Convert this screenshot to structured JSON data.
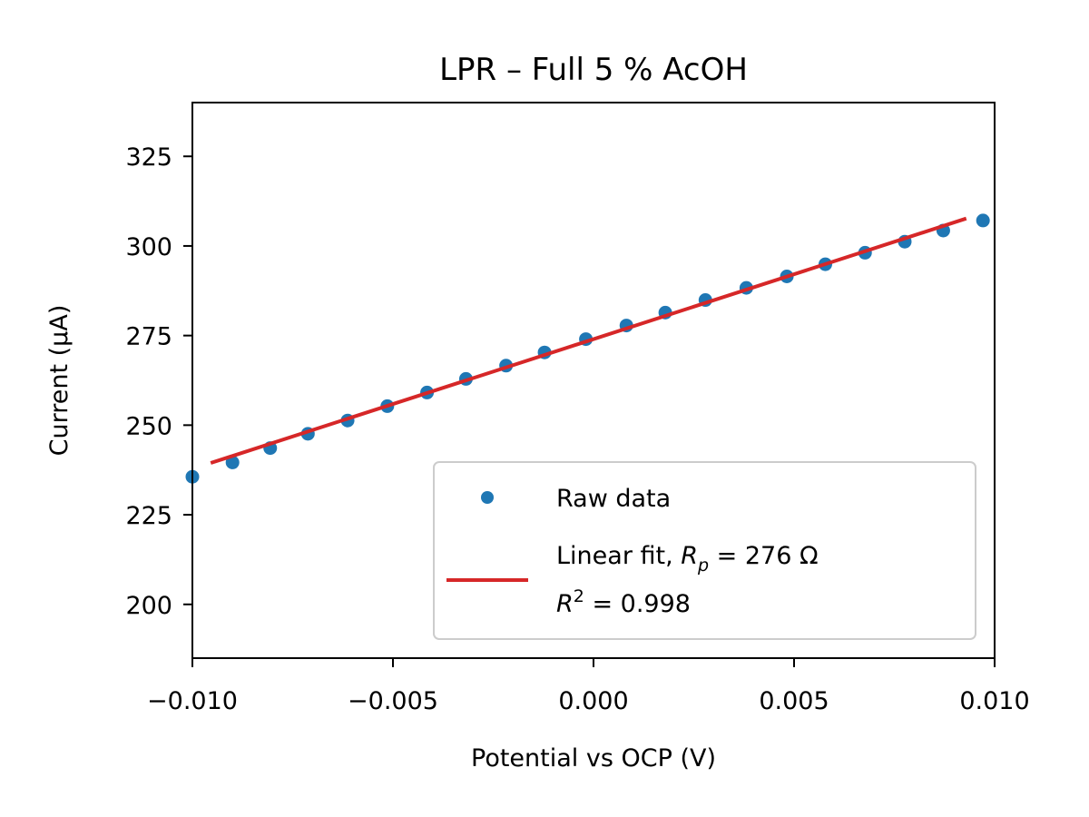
{
  "chart_data": {
    "type": "scatter",
    "title": "LPR – Full 5 % AcOH",
    "xlabel": "Potential vs OCP (V)",
    "ylabel": "Current (μA)",
    "xlim": [
      -0.01,
      0.01
    ],
    "ylim": [
      185,
      340
    ],
    "xticks": [
      -0.01,
      -0.005,
      0.0,
      0.005,
      0.01
    ],
    "xtick_labels": [
      "−0.010",
      "−0.005",
      "0.000",
      "0.005",
      "0.010"
    ],
    "yticks": [
      200,
      225,
      250,
      275,
      300,
      325
    ],
    "ytick_labels": [
      "200",
      "225",
      "250",
      "275",
      "300",
      "325"
    ],
    "grid": false,
    "legend_position": "lower-right",
    "series": [
      {
        "name": "Raw data",
        "kind": "scatter",
        "color": "#1f77b4",
        "x": [
          -0.01,
          -0.009,
          -0.00806,
          -0.00712,
          -0.00613,
          -0.00514,
          -0.00415,
          -0.00318,
          -0.00218,
          -0.00122,
          -0.00019,
          0.00082,
          0.00179,
          0.00279,
          0.00381,
          0.00482,
          0.00578,
          0.00677,
          0.00776,
          0.00872,
          0.00971
        ],
        "y": [
          235.6,
          239.6,
          243.6,
          247.6,
          251.3,
          255.3,
          259.1,
          262.9,
          266.6,
          270.3,
          274.0,
          277.8,
          281.4,
          284.9,
          288.3,
          291.5,
          294.9,
          298.1,
          301.2,
          304.3,
          307.1
        ]
      },
      {
        "name": "Linear fit, R_p = 276 Ω\nR^2 = 0.998",
        "kind": "line",
        "color": "#d62728",
        "x": [
          -0.0095,
          0.00925
        ],
        "y": [
          239.6,
          307.5
        ]
      }
    ],
    "legend": {
      "raw_label": "Raw data",
      "fit_label_prefix": "Linear fit, ",
      "fit_symbol": "R",
      "fit_subscript": "p",
      "fit_value": " = 276 Ω",
      "r2_symbol": "R",
      "r2_superscript": "2",
      "r2_value": " = 0.998"
    }
  }
}
